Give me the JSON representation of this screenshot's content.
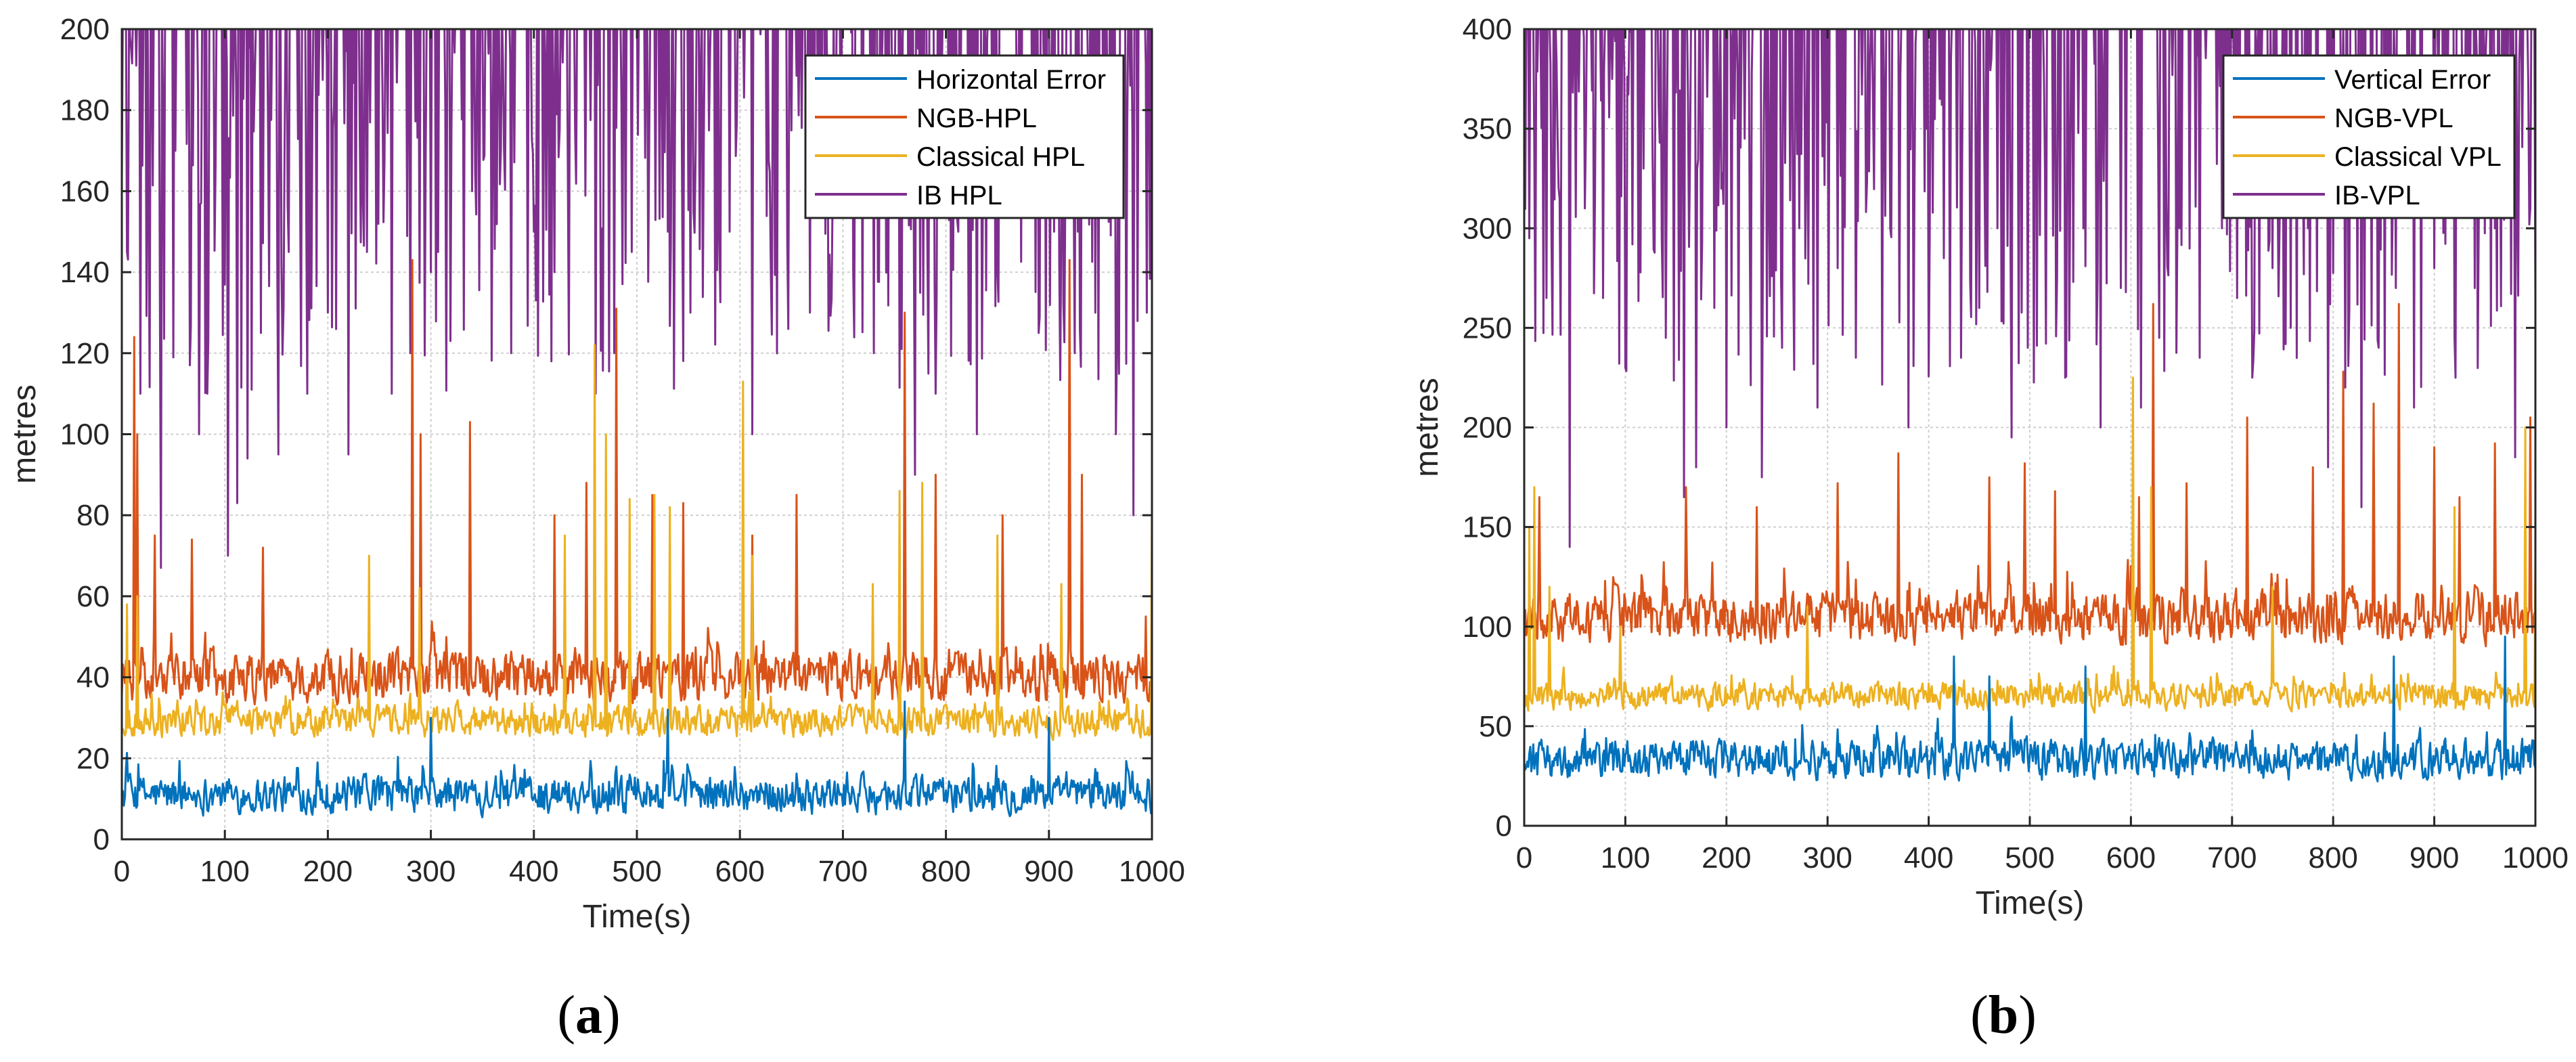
{
  "chart_data": [
    {
      "type": "line",
      "panel": "a",
      "caption_label": "a",
      "title": "",
      "xlabel": "Time(s)",
      "ylabel": "metres",
      "xlim": [
        0,
        1000
      ],
      "ylim": [
        0,
        200
      ],
      "xticks": [
        0,
        100,
        200,
        300,
        400,
        500,
        600,
        700,
        800,
        900,
        1000
      ],
      "yticks": [
        0,
        20,
        40,
        60,
        80,
        100,
        120,
        140,
        160,
        180,
        200
      ],
      "grid": true,
      "legend_position": "top-right",
      "series": [
        {
          "name": "Horizontal Error",
          "color": "#0072BD",
          "base": 11,
          "noise": 6,
          "min": 1,
          "max": 35,
          "spikes": [
            [
              530,
              32
            ],
            [
              300,
              30
            ],
            [
              760,
              34
            ],
            [
              900,
              30
            ]
          ]
        },
        {
          "name": "NGB-HPL",
          "color": "#D95319",
          "base": 40,
          "noise": 8,
          "min": 20,
          "max": 200,
          "spikes": [
            [
              12,
              124
            ],
            [
              15,
              100
            ],
            [
              32,
              75
            ],
            [
              68,
              74
            ],
            [
              137,
              72
            ],
            [
              282,
              143
            ],
            [
              290,
              100
            ],
            [
              338,
              103
            ],
            [
              420,
              80
            ],
            [
              451,
              88
            ],
            [
              480,
              131
            ],
            [
              515,
              85
            ],
            [
              545,
              83
            ],
            [
              612,
              75
            ],
            [
              655,
              85
            ],
            [
              760,
              130
            ],
            [
              790,
              90
            ],
            [
              855,
              80
            ],
            [
              920,
              143
            ],
            [
              932,
              90
            ],
            [
              994,
              55
            ]
          ]
        },
        {
          "name": "Classical HPL",
          "color": "#EDB120",
          "base": 29,
          "noise": 5,
          "min": 18,
          "max": 200,
          "spikes": [
            [
              5,
              58
            ],
            [
              15,
              60
            ],
            [
              240,
              70
            ],
            [
              289,
              62
            ],
            [
              430,
              75
            ],
            [
              459,
              122
            ],
            [
              470,
              100
            ],
            [
              493,
              84
            ],
            [
              517,
              85
            ],
            [
              532,
              82
            ],
            [
              603,
              113
            ],
            [
              612,
              70
            ],
            [
              729,
              63
            ],
            [
              755,
              86
            ],
            [
              777,
              88
            ],
            [
              850,
              75
            ],
            [
              912,
              63
            ],
            [
              1000,
              83
            ]
          ]
        },
        {
          "name": "IB HPL",
          "color": "#7E2F8E",
          "base": 205,
          "noise": 0,
          "min": 0,
          "max": 200,
          "dips": [
            [
              5,
              145
            ],
            [
              18,
              110
            ],
            [
              38,
              67
            ],
            [
              52,
              170
            ],
            [
              75,
              100
            ],
            [
              83,
              110
            ],
            [
              103,
              70
            ],
            [
              112,
              83
            ],
            [
              122,
              94
            ],
            [
              135,
              125
            ],
            [
              152,
              95
            ],
            [
              162,
              145
            ],
            [
              180,
              110
            ],
            [
              200,
              130
            ],
            [
              220,
              95
            ],
            [
              238,
              145
            ],
            [
              262,
              110
            ],
            [
              280,
              120
            ],
            [
              300,
              140
            ],
            [
              320,
              175
            ],
            [
              340,
              160
            ],
            [
              360,
              175
            ],
            [
              378,
              120
            ],
            [
              400,
              150
            ],
            [
              420,
              140
            ],
            [
              440,
              175
            ],
            [
              460,
              110
            ],
            [
              478,
              120
            ],
            [
              495,
              145
            ],
            [
              512,
              175
            ],
            [
              530,
              150
            ],
            [
              552,
              130
            ],
            [
              570,
              175
            ],
            [
              590,
              150
            ],
            [
              612,
              100
            ],
            [
              630,
              140
            ],
            [
              650,
              175
            ],
            [
              668,
              130
            ],
            [
              690,
              160
            ],
            [
              710,
              140
            ],
            [
              730,
              120
            ],
            [
              750,
              175
            ],
            [
              770,
              90
            ],
            [
              790,
              110
            ],
            [
              812,
              150
            ],
            [
              830,
              100
            ],
            [
              850,
              140
            ],
            [
              870,
              160
            ],
            [
              890,
              125
            ],
            [
              905,
              150
            ],
            [
              925,
              120
            ],
            [
              945,
              130
            ],
            [
              965,
              100
            ],
            [
              982,
              80
            ],
            [
              995,
              130
            ]
          ]
        }
      ]
    },
    {
      "type": "line",
      "panel": "b",
      "caption_label": "b",
      "title": "",
      "xlabel": "Time(s)",
      "ylabel": "metres",
      "xlim": [
        0,
        1000
      ],
      "ylim": [
        0,
        400
      ],
      "xticks": [
        0,
        100,
        200,
        300,
        400,
        500,
        600,
        700,
        800,
        900,
        1000
      ],
      "yticks": [
        0,
        50,
        100,
        150,
        200,
        250,
        300,
        350,
        400
      ],
      "grid": true,
      "legend_position": "top-right",
      "series": [
        {
          "name": "Vertical Error",
          "color": "#0072BD",
          "base": 33,
          "noise": 13,
          "min": 1,
          "max": 90,
          "spikes": [
            [
              425,
              85
            ],
            [
              460,
              75
            ],
            [
              555,
              80
            ],
            [
              860,
              85
            ],
            [
              970,
              95
            ]
          ]
        },
        {
          "name": "NGB-VPL",
          "color": "#D95319",
          "base": 105,
          "noise": 17,
          "min": 65,
          "max": 400,
          "spikes": [
            [
              15,
              165
            ],
            [
              160,
              170
            ],
            [
              230,
              160
            ],
            [
              310,
              172
            ],
            [
              370,
              187
            ],
            [
              460,
              175
            ],
            [
              495,
              182
            ],
            [
              525,
              168
            ],
            [
              608,
              165
            ],
            [
              622,
              262
            ],
            [
              655,
              172
            ],
            [
              715,
              205
            ],
            [
              780,
              180
            ],
            [
              810,
              228
            ],
            [
              840,
              212
            ],
            [
              865,
              262
            ],
            [
              900,
              190
            ],
            [
              925,
              165
            ],
            [
              960,
              192
            ],
            [
              995,
              205
            ]
          ]
        },
        {
          "name": "Classical VPL",
          "color": "#EDB120",
          "base": 65,
          "noise": 9,
          "min": 45,
          "max": 400,
          "spikes": [
            [
              5,
              150
            ],
            [
              10,
              170
            ],
            [
              25,
              120
            ],
            [
              95,
              100
            ],
            [
              280,
              110
            ],
            [
              602,
              225
            ],
            [
              620,
              170
            ],
            [
              740,
              120
            ],
            [
              920,
              160
            ],
            [
              990,
              200
            ],
            [
              1000,
              135
            ]
          ]
        },
        {
          "name": "IB-VPL",
          "color": "#7E2F8E",
          "base": 405,
          "noise": 0,
          "min": 0,
          "max": 400,
          "dips": [
            [
              5,
              295
            ],
            [
              10,
              340
            ],
            [
              22,
              265
            ],
            [
              35,
              315
            ],
            [
              45,
              140
            ],
            [
              60,
              310
            ],
            [
              78,
              265
            ],
            [
              100,
              230
            ],
            [
              118,
              330
            ],
            [
              140,
              245
            ],
            [
              158,
              165
            ],
            [
              170,
              180
            ],
            [
              188,
              260
            ],
            [
              200,
              200
            ],
            [
              218,
              345
            ],
            [
              235,
              175
            ],
            [
              255,
              240
            ],
            [
              272,
              300
            ],
            [
              290,
              210
            ],
            [
              310,
              280
            ],
            [
              328,
              235
            ],
            [
              345,
              360
            ],
            [
              362,
              300
            ],
            [
              380,
              200
            ],
            [
              398,
              350
            ],
            [
              415,
              285
            ],
            [
              432,
              235
            ],
            [
              450,
              260
            ],
            [
              468,
              300
            ],
            [
              482,
              195
            ],
            [
              498,
              240
            ],
            [
              515,
              330
            ],
            [
              535,
              225
            ],
            [
              553,
              300
            ],
            [
              570,
              200
            ],
            [
              590,
              270
            ],
            [
              610,
              210
            ],
            [
              628,
              245
            ],
            [
              648,
              300
            ],
            [
              668,
              235
            ],
            [
              690,
              300
            ],
            [
              705,
              265
            ],
            [
              720,
              225
            ],
            [
              740,
              280
            ],
            [
              758,
              250
            ],
            [
              775,
              300
            ],
            [
              795,
              180
            ],
            [
              812,
              220
            ],
            [
              828,
              160
            ],
            [
              845,
              240
            ],
            [
              862,
              270
            ],
            [
              880,
              210
            ],
            [
              900,
              280
            ],
            [
              920,
              245
            ],
            [
              940,
              270
            ],
            [
              960,
              300
            ],
            [
              980,
              185
            ],
            [
              995,
              310
            ]
          ]
        }
      ]
    }
  ]
}
